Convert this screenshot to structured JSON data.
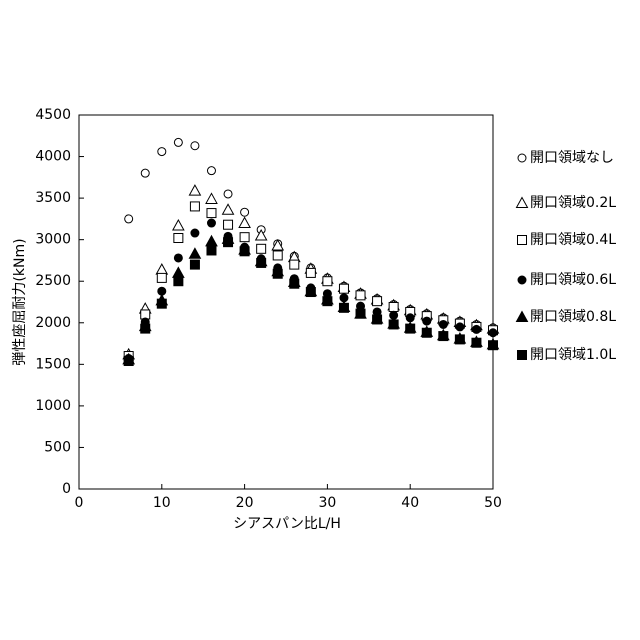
{
  "chart_data": {
    "type": "scatter",
    "x_label": "シアスパン比L/H",
    "y_label": "弾性座屈耐力(kNm)",
    "x": [
      6,
      8,
      10,
      12,
      14,
      16,
      18,
      20,
      22,
      24,
      26,
      28,
      30,
      32,
      34,
      36,
      38,
      40,
      42,
      44,
      46,
      48,
      50
    ],
    "xlim": [
      0,
      50
    ],
    "xticks": [
      0,
      10,
      20,
      30,
      40,
      50
    ],
    "ylim": [
      0,
      4500
    ],
    "yticks": [
      0,
      500,
      1000,
      1500,
      2000,
      2500,
      3000,
      3500,
      4000,
      4500
    ],
    "grid": false,
    "legend": "right",
    "series": [
      {
        "name": "開口領域なし",
        "color": "#000000",
        "marker": "circle",
        "filled": false,
        "values": [
          3250,
          3800,
          4060,
          4170,
          4130,
          3830,
          3550,
          3330,
          3120,
          2950,
          2800,
          2660,
          2540,
          2440,
          2360,
          2290,
          2220,
          2160,
          2110,
          2060,
          2020,
          1980,
          1940
        ]
      },
      {
        "name": "開口領域0.2L",
        "color": "#000000",
        "marker": "triangle",
        "filled": false,
        "values": [
          1620,
          2170,
          2640,
          3170,
          3590,
          3490,
          3360,
          3200,
          3050,
          2930,
          2790,
          2650,
          2530,
          2430,
          2350,
          2280,
          2210,
          2150,
          2100,
          2050,
          2010,
          1970,
          1930
        ]
      },
      {
        "name": "開口領域0.4L",
        "color": "#000000",
        "marker": "square",
        "filled": false,
        "values": [
          1600,
          2100,
          2540,
          3020,
          3400,
          3320,
          3180,
          3030,
          2890,
          2810,
          2700,
          2600,
          2500,
          2410,
          2330,
          2260,
          2190,
          2130,
          2080,
          2030,
          1990,
          1950,
          1910
        ]
      },
      {
        "name": "開口領域0.6L",
        "color": "#000000",
        "marker": "circle",
        "filled": true,
        "values": [
          1570,
          2010,
          2380,
          2780,
          3080,
          3200,
          3040,
          2910,
          2770,
          2660,
          2530,
          2420,
          2350,
          2300,
          2200,
          2130,
          2090,
          2060,
          2020,
          1980,
          1950,
          1920,
          1880
        ]
      },
      {
        "name": "開口領域0.8L",
        "color": "#000000",
        "marker": "triangle",
        "filled": true,
        "values": [
          1560,
          1960,
          2270,
          2600,
          2830,
          2980,
          3010,
          2880,
          2740,
          2620,
          2490,
          2380,
          2280,
          2190,
          2110,
          2050,
          1990,
          1940,
          1890,
          1850,
          1810,
          1770,
          1740
        ]
      },
      {
        "name": "開口領域1.0L",
        "color": "#000000",
        "marker": "square",
        "filled": true,
        "values": [
          1540,
          1930,
          2230,
          2500,
          2700,
          2870,
          2970,
          2860,
          2720,
          2590,
          2470,
          2370,
          2260,
          2180,
          2110,
          2040,
          1980,
          1930,
          1880,
          1840,
          1800,
          1760,
          1730
        ]
      }
    ]
  }
}
